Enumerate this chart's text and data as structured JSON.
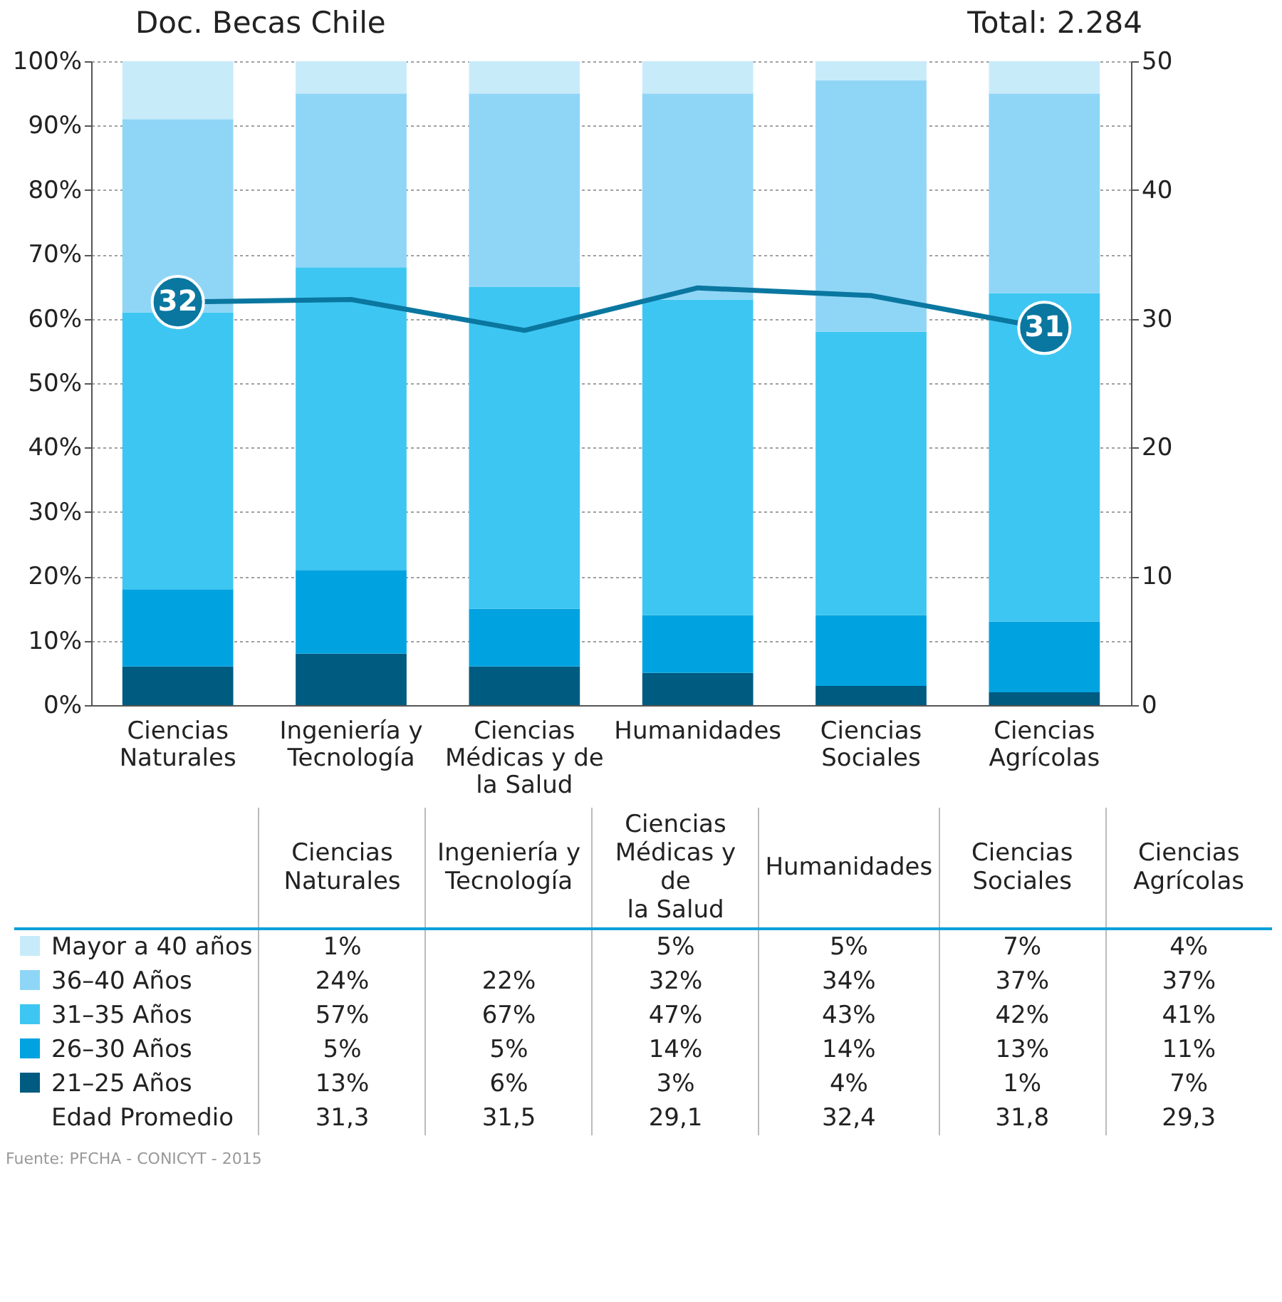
{
  "chart_data": [
    {
      "type": "bar",
      "title": "Doc. Becas Chile",
      "stacked": true,
      "grid": "y",
      "marker": "none",
      "categories": [
        "Ciencias Naturales",
        "Ingeniería y Tecnología",
        "Ciencias Médicas y de la Salud",
        "Humanidades",
        "Ciencias Sociales",
        "Ciencias Agrícolas"
      ],
      "series": [
        {
          "color": "#005b80",
          "values": [
            6,
            8,
            6,
            5,
            3,
            2
          ]
        },
        {
          "color": "#00a3e0",
          "values": [
            12,
            13,
            9,
            9,
            11,
            11
          ]
        },
        {
          "color": "#3ec6f2",
          "values": [
            43,
            47,
            50,
            49,
            44,
            51
          ]
        },
        {
          "color": "#8fd6f6",
          "values": [
            30,
            27,
            30,
            32,
            39,
            31
          ]
        },
        {
          "color": "#c8ebfa",
          "values": [
            9,
            5,
            5,
            5,
            3,
            5
          ]
        },
        {
          "type": "line",
          "axis": "y2",
          "color": "#0a77a0",
          "values": [
            31.3,
            31.5,
            29.1,
            32.4,
            31.8,
            29.3
          ]
        }
      ],
      "ylim": [
        0,
        100
      ],
      "yticks": [
        {
          "value": 0,
          "label": "0%"
        },
        {
          "value": 10,
          "label": "10%"
        },
        {
          "value": 20,
          "label": "20%"
        },
        {
          "value": 30,
          "label": "30%"
        },
        {
          "value": 40,
          "label": "40%"
        },
        {
          "value": 50,
          "label": "50%"
        },
        {
          "value": 60,
          "label": "60%"
        },
        {
          "value": 70,
          "label": "70%"
        },
        {
          "value": 80,
          "label": "80%"
        },
        {
          "value": 90,
          "label": "90%"
        },
        {
          "value": 100,
          "label": "100%"
        }
      ],
      "y2lim": [
        0,
        50
      ],
      "y2ticks": [
        0,
        10,
        20,
        30,
        40,
        50
      ],
      "annotations": [
        "Total: 2.284",
        "32",
        "31"
      ]
    },
    {
      "type": "other",
      "categories": [
        "Ciencias Naturales",
        "Ingeniería y Tecnología",
        "Ciencias Médicas y de la Salud",
        "Humanidades",
        "Ciencias Sociales",
        "Ciencias Agrícolas"
      ],
      "series": [
        {
          "name": "Mayor a 40 años",
          "color": "#c8ebfa",
          "values": [
            1,
            null,
            5,
            5,
            7,
            4
          ],
          "value_labels": [
            "1%",
            null,
            "5%",
            "5%",
            "7%",
            "4%"
          ]
        },
        {
          "name": "36–40 Años",
          "color": "#8fd6f6",
          "values": [
            24,
            22,
            32,
            34,
            37,
            37
          ],
          "value_labels": [
            "24%",
            "22%",
            "32%",
            "34%",
            "37%",
            "37%"
          ]
        },
        {
          "name": "31–35 Años",
          "color": "#3ec6f2",
          "values": [
            57,
            67,
            47,
            43,
            42,
            41
          ],
          "value_labels": [
            "57%",
            "67%",
            "47%",
            "43%",
            "42%",
            "41%"
          ]
        },
        {
          "name": "26–30 Años",
          "color": "#00a3e0",
          "values": [
            5,
            5,
            14,
            14,
            13,
            11
          ],
          "value_labels": [
            "5%",
            "5%",
            "14%",
            "14%",
            "13%",
            "11%"
          ]
        },
        {
          "name": "21–25 Años",
          "color": "#005b80",
          "values": [
            13,
            6,
            3,
            4,
            1,
            7
          ],
          "value_labels": [
            "13%",
            "6%",
            "3%",
            "4%",
            "1%",
            "7%"
          ]
        },
        {
          "name": "Edad Promedio",
          "values": [
            31.3,
            31.5,
            29.1,
            32.4,
            31.8,
            29.3
          ],
          "value_labels": [
            "31,3",
            "31,5",
            "29,1",
            "32,4",
            "31,8",
            "29,3"
          ]
        }
      ],
      "annotations": [
        "Fuente: PFCHA - CONICYT - 2015"
      ]
    }
  ]
}
